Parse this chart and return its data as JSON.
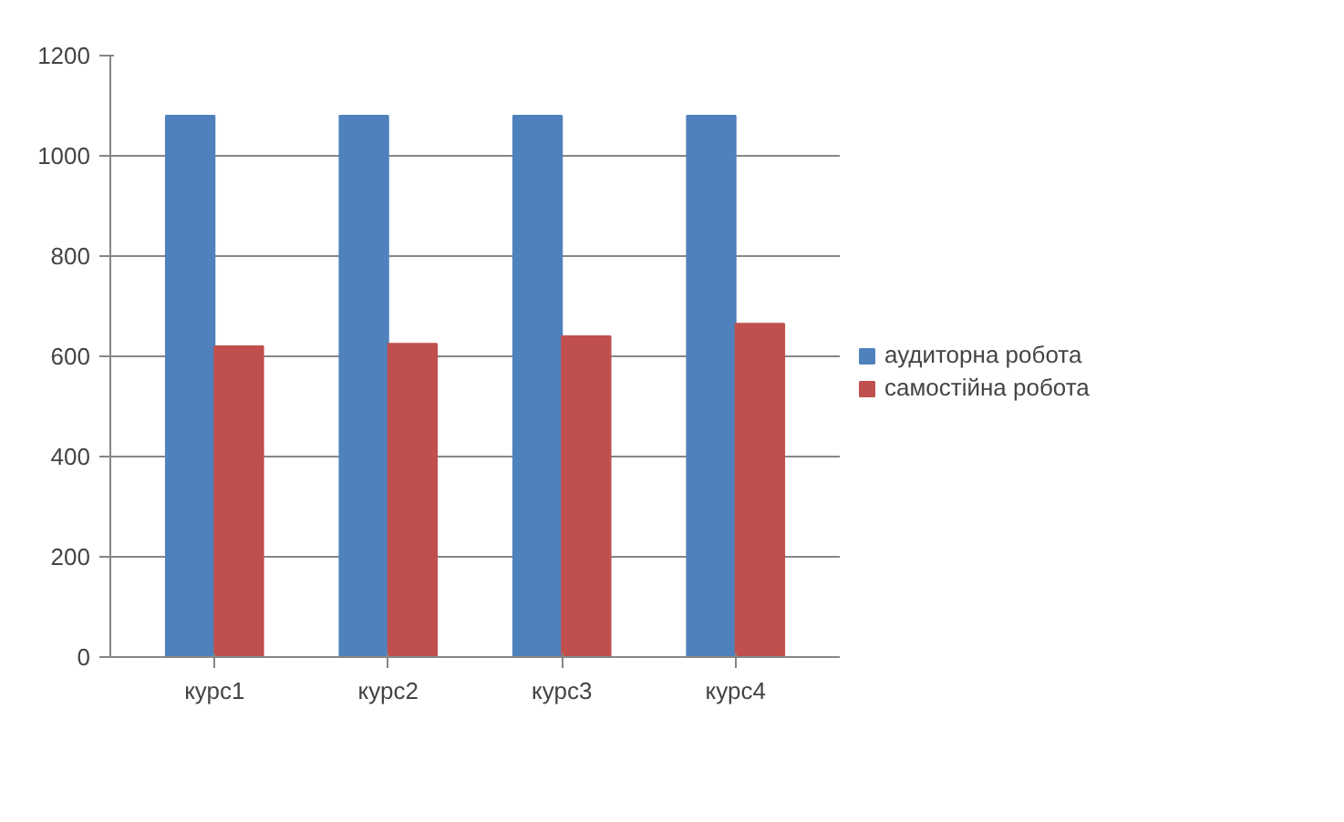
{
  "chart_data": {
    "type": "bar",
    "categories": [
      "курс1",
      "курс2",
      "курс3",
      "курс4"
    ],
    "series": [
      {
        "name": "аудиторна робота",
        "color": "#4f81bd",
        "values": [
          1080,
          1080,
          1080,
          1080
        ]
      },
      {
        "name": "самостійна робота",
        "color": "#c0504d",
        "values": [
          620,
          625,
          640,
          665
        ]
      }
    ],
    "ylim": [
      0,
      1200
    ],
    "yticks": [
      0,
      200,
      400,
      600,
      800,
      1000,
      1200
    ],
    "grid": "y",
    "legend": "right"
  }
}
